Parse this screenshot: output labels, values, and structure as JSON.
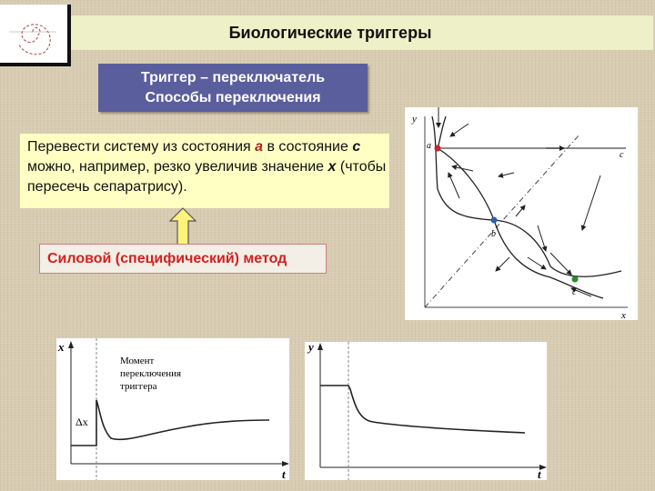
{
  "slide": {
    "title": "Биологические триггеры",
    "subtitle_line1": "Триггер – переключатель",
    "subtitle_line2": "Способы переключения",
    "description": {
      "part1": "Перевести систему из состояния ",
      "state_a": "a",
      "part2": " в состояние ",
      "state_c": "c",
      "part3": " можно, например, резко увеличив значение ",
      "var_x": "x",
      "part4": " (чтобы пересечь сепаратрису)."
    },
    "method": "Силовой (специфический) метод"
  },
  "phase_diagram": {
    "y_label": "y",
    "x_label": "x",
    "points": {
      "a": "a",
      "b": "b",
      "c": "c",
      "c_end": "c"
    },
    "colors": {
      "a": "#c0282a",
      "b": "#2f5fb0",
      "c": "#2a8a2a"
    }
  },
  "chart_x": {
    "y_label": "x",
    "x_label": "t",
    "delta_label": "Δx",
    "annotation_line1": "Момент",
    "annotation_line2": "переключения",
    "annotation_line3": "триггера"
  },
  "chart_y": {
    "y_label": "y",
    "x_label": "t"
  }
}
